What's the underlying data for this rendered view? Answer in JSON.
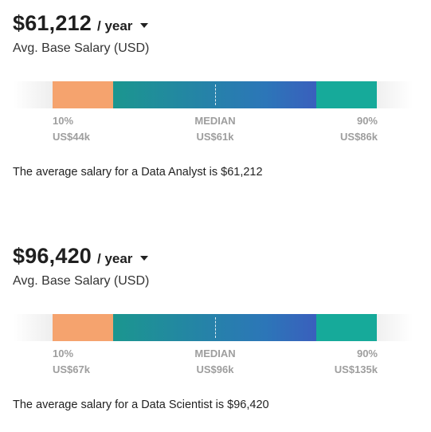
{
  "cards": [
    {
      "amount": "$61,212",
      "period": "/ year",
      "subtitle": "Avg. Base Salary (USD)",
      "low_pct": "10%",
      "low_val": "US$44k",
      "median_label": "MEDIAN",
      "median_val": "US$61k",
      "high_pct": "90%",
      "high_val": "US$86k",
      "summary": "The average salary for a Data Analyst is $61,212"
    },
    {
      "amount": "$96,420",
      "period": "/ year",
      "subtitle": "Avg. Base Salary (USD)",
      "low_pct": "10%",
      "low_val": "US$67k",
      "median_label": "MEDIAN",
      "median_val": "US$96k",
      "high_pct": "90%",
      "high_val": "US$135k",
      "summary": "The average salary for a Data Scientist is $96,420"
    }
  ],
  "colors": {
    "low_segment": "#f5a36e",
    "mid_segment_start": "#1b968f",
    "mid_segment_end": "#3a5fbd",
    "high_segment": "#16aa9a",
    "tick_text": "#9e9e9e"
  },
  "icons": {
    "period_dropdown": "caret-down-icon"
  }
}
